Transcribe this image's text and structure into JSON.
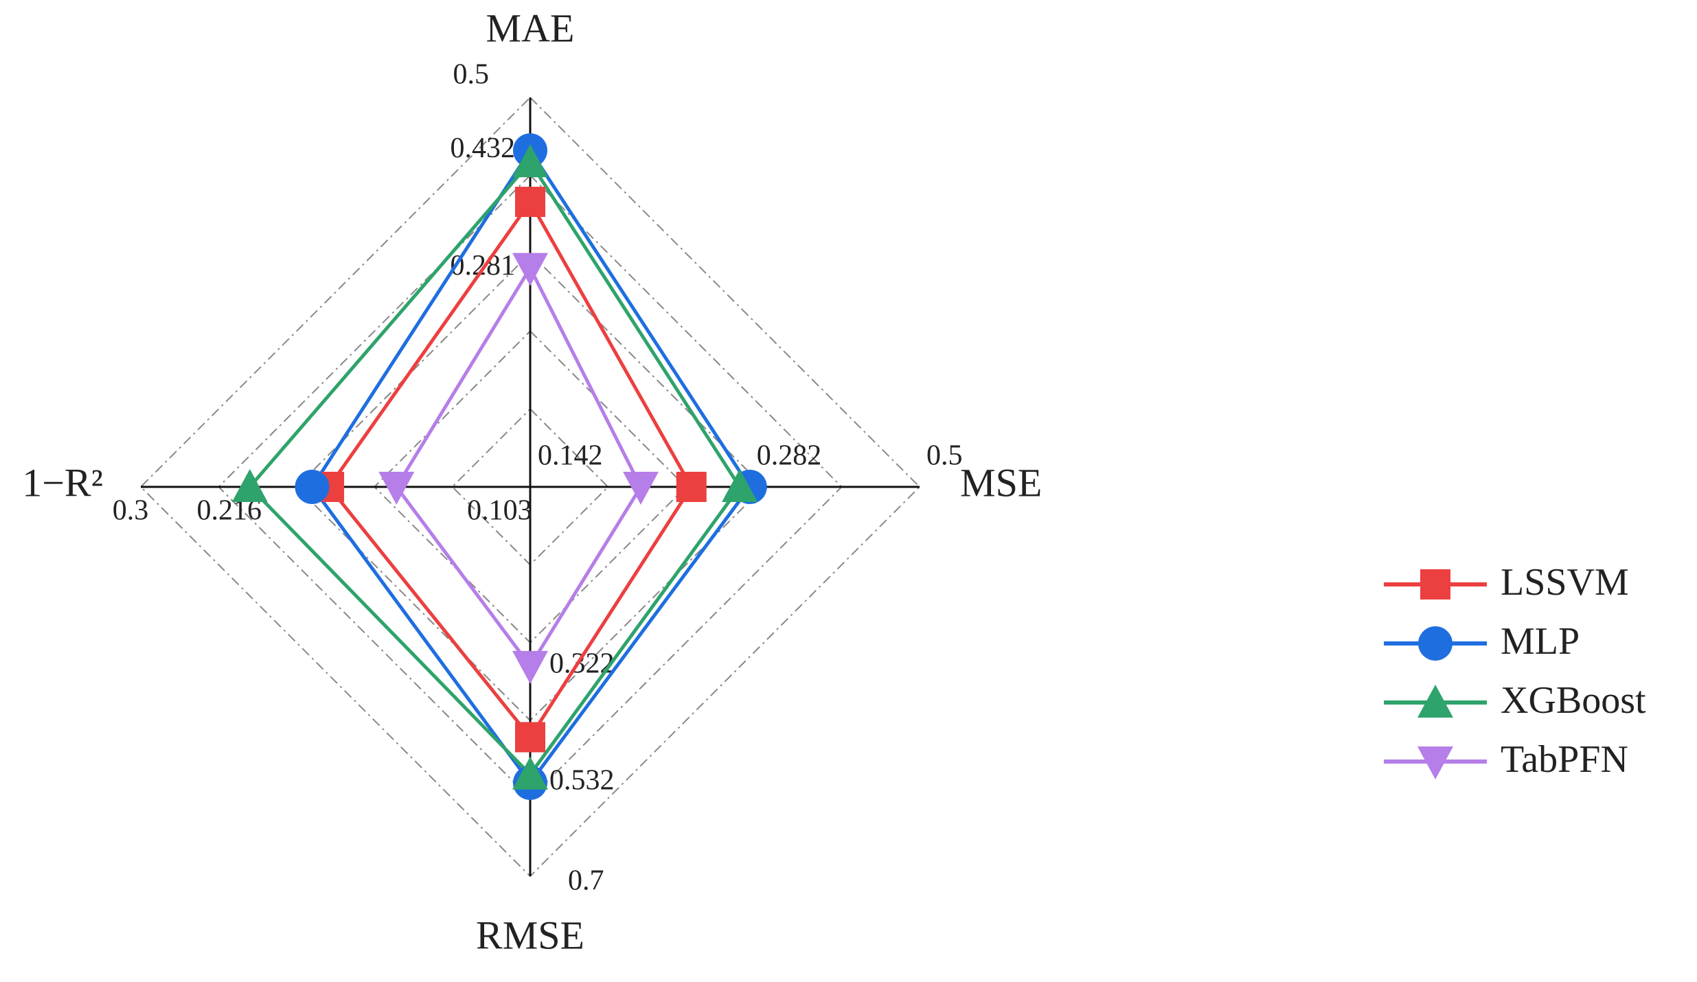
{
  "chart_data": {
    "type": "radar",
    "axes": [
      {
        "name": "MAE",
        "lim": [
          0,
          0.5
        ],
        "ticks": [
          0.281,
          0.432,
          0.5
        ]
      },
      {
        "name": "MSE",
        "lim": [
          0,
          0.5
        ],
        "ticks": [
          0.142,
          0.282,
          0.5
        ]
      },
      {
        "name": "RMSE",
        "lim": [
          0,
          0.7
        ],
        "ticks": [
          0.322,
          0.532,
          0.7
        ]
      },
      {
        "name": "1−R²",
        "lim": [
          0,
          0.3
        ],
        "ticks": [
          0.103,
          0.216,
          0.3
        ]
      }
    ],
    "series": [
      {
        "name": "LSSVM",
        "color": "#ec3f3f",
        "marker": "square",
        "values": [
          0.366,
          0.207,
          0.45,
          0.155
        ]
      },
      {
        "name": "MLP",
        "color": "#1f6ee0",
        "marker": "circle",
        "values": [
          0.432,
          0.282,
          0.532,
          0.168
        ]
      },
      {
        "name": "XGBoost",
        "color": "#2ea36b",
        "marker": "triangle-up",
        "values": [
          0.417,
          0.269,
          0.517,
          0.216
        ]
      },
      {
        "name": "TabPFN",
        "color": "#b57ee8",
        "marker": "triangle-down",
        "values": [
          0.281,
          0.142,
          0.322,
          0.103
        ]
      }
    ],
    "grid": true,
    "legend": "right"
  }
}
